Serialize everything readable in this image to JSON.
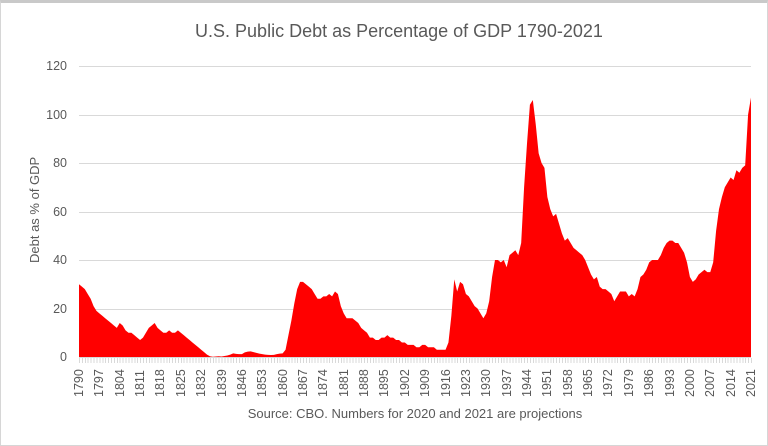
{
  "chart": {
    "title": "U.S. Public Debt as Percentage of GDP 1790-2021",
    "y_axis_title": "Debt as % of GDP",
    "caption": "Source: CBO. Numbers for 2020 and 2021 are projections"
  },
  "chart_data": {
    "type": "area",
    "title": "U.S. Public Debt as Percentage of GDP 1790-2021",
    "xlabel": "",
    "ylabel": "Debt as % of GDP",
    "annotation": "Source: CBO. Numbers for 2020 and 2021 are projections",
    "x_start": 1790,
    "x_end": 2021,
    "x_tick_step": 7,
    "x_tick_labels": [
      1790,
      1797,
      1804,
      1811,
      1818,
      1825,
      1832,
      1839,
      1846,
      1853,
      1860,
      1867,
      1874,
      1881,
      1888,
      1895,
      1902,
      1909,
      1916,
      1923,
      1930,
      1937,
      1944,
      1951,
      1958,
      1965,
      1972,
      1979,
      1986,
      1993,
      2000,
      2007,
      2014,
      2021
    ],
    "y_ticks": [
      0,
      20,
      40,
      60,
      80,
      100,
      120
    ],
    "ylim": [
      0,
      120
    ],
    "grid": "horizontal",
    "legend": "none",
    "fill_color": "#FF0000",
    "grid_color": "#D9D9D9",
    "text_color": "#595959",
    "values": [
      30,
      29,
      28,
      26,
      24,
      21,
      19,
      18,
      17,
      16,
      15,
      14,
      13,
      12,
      14,
      13,
      11,
      10,
      10,
      9,
      8,
      7,
      8,
      10,
      12,
      13,
      14,
      12,
      11,
      10,
      10,
      11,
      10,
      10,
      11,
      10,
      9,
      8,
      7,
      6,
      5,
      4,
      3,
      2,
      1,
      0.3,
      0.1,
      0.2,
      0.3,
      0.2,
      0.4,
      0.6,
      1,
      1.5,
      1.3,
      1.2,
      1.2,
      1.9,
      2.2,
      2.3,
      2,
      1.7,
      1.4,
      1.2,
      1,
      0.9,
      0.8,
      0.9,
      1.2,
      1.4,
      1.5,
      3,
      9,
      15,
      22,
      28,
      31,
      31,
      30,
      29,
      28,
      26,
      24,
      24,
      25,
      25,
      26,
      25,
      27,
      26,
      21,
      18,
      16,
      16,
      16,
      15,
      14,
      12,
      11,
      10,
      8,
      8,
      7,
      7,
      8,
      8,
      9,
      8,
      8,
      7,
      7,
      6,
      6,
      5,
      5,
      5,
      4,
      4,
      5,
      5,
      4,
      4,
      4,
      3,
      3,
      3,
      3,
      6,
      17,
      32,
      27,
      31,
      30,
      26,
      25,
      23,
      21,
      20,
      18,
      16,
      18,
      23,
      33,
      40,
      40,
      39,
      40,
      37,
      42,
      43,
      44,
      42,
      47,
      70,
      88,
      104,
      106,
      96,
      84,
      80,
      78,
      66,
      61,
      58,
      59,
      55,
      51,
      48,
      49,
      47,
      45,
      44,
      43,
      42,
      40,
      37,
      34,
      32,
      33,
      29,
      28,
      28,
      27,
      26,
      23,
      25,
      27,
      27,
      27,
      25,
      26,
      25,
      28,
      33,
      34,
      36,
      39,
      40,
      40,
      40,
      42,
      45,
      47,
      48,
      48,
      47,
      47,
      45,
      43,
      39,
      33,
      31,
      32,
      34,
      35,
      36,
      35,
      35,
      39,
      52,
      61,
      66,
      70,
      72,
      74,
      73,
      77,
      76,
      78,
      79,
      100,
      107
    ]
  }
}
